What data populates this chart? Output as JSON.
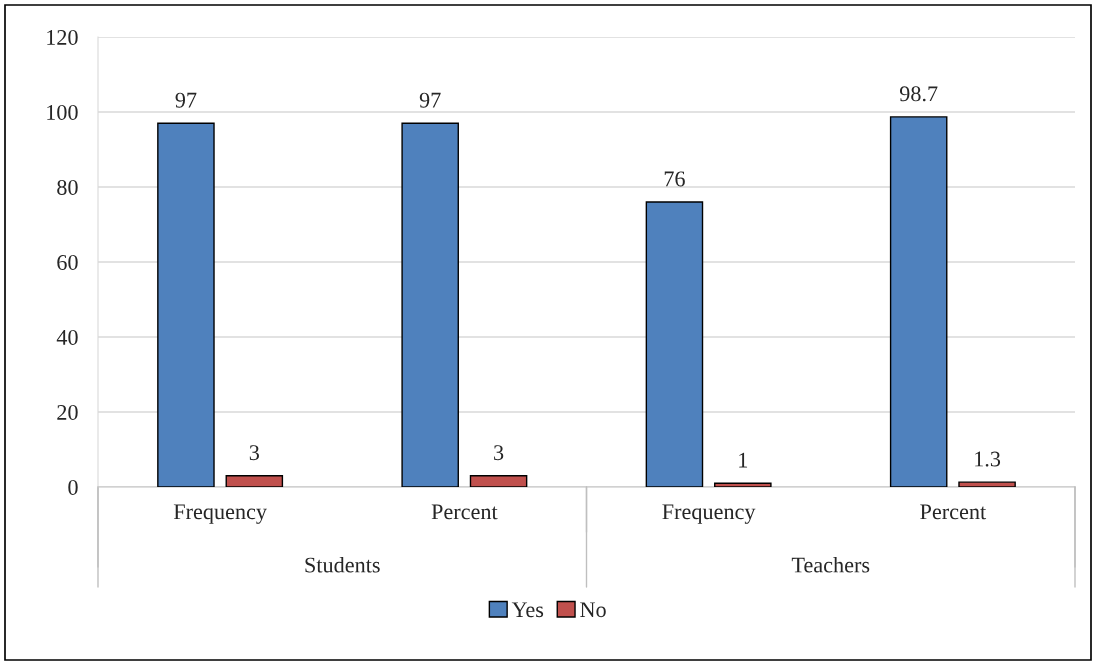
{
  "chart_data": {
    "type": "bar",
    "categories": [
      "Frequency",
      "Percent",
      "Frequency",
      "Percent"
    ],
    "annotations": [
      "Students",
      "Teachers"
    ],
    "series": [
      {
        "name": "Yes",
        "color": "#4f81bd",
        "values": [
          97,
          97,
          76,
          98.7
        ]
      },
      {
        "name": "No",
        "color": "#c0504d",
        "values": [
          3,
          3,
          1,
          1.3
        ]
      }
    ],
    "ylim": [
      0,
      120
    ],
    "yticks": [
      0,
      20,
      40,
      60,
      80,
      100,
      120
    ],
    "grid": "y",
    "legend": "bottom",
    "data_labels": true
  }
}
